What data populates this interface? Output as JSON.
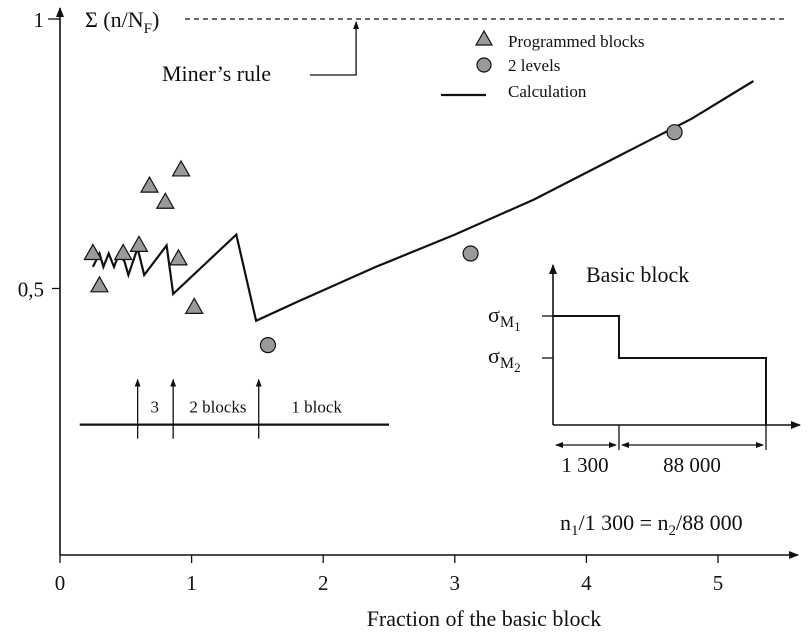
{
  "chart_data": {
    "type": "scatter",
    "xlabel": "Fraction of the basic block",
    "x_ticks": [
      "0",
      "1",
      "2",
      "3",
      "4",
      "5"
    ],
    "y_ticks": [
      "0,5",
      "1"
    ],
    "xlim": [
      0,
      5.3
    ],
    "ylim": [
      0,
      1
    ],
    "grid": false,
    "legend_position": "top-right",
    "legend": {
      "programmed": "Programmed blocks",
      "levels": "2 levels",
      "calc": "Calculation"
    },
    "reference": {
      "sum_label": "Σ (n/N",
      "sum_sub": "F",
      "sum_close": ")",
      "miner_label": "Miner’s rule",
      "miner_x": 2.25,
      "y": 1
    },
    "series": [
      {
        "name": "Programmed blocks",
        "marker": "triangle",
        "points": [
          {
            "x": 0.25,
            "y": 0.565
          },
          {
            "x": 0.3,
            "y": 0.505
          },
          {
            "x": 0.48,
            "y": 0.565
          },
          {
            "x": 0.6,
            "y": 0.58
          },
          {
            "x": 0.68,
            "y": 0.69
          },
          {
            "x": 0.8,
            "y": 0.66
          },
          {
            "x": 0.9,
            "y": 0.555
          },
          {
            "x": 0.92,
            "y": 0.72
          },
          {
            "x": 1.02,
            "y": 0.465
          }
        ]
      },
      {
        "name": "2 levels",
        "marker": "circle",
        "points": [
          {
            "x": 1.58,
            "y": 0.395
          },
          {
            "x": 3.12,
            "y": 0.565
          },
          {
            "x": 4.67,
            "y": 0.79
          }
        ]
      },
      {
        "name": "Calculation",
        "marker": "line",
        "points": [
          {
            "x": 0.25,
            "y": 0.54
          },
          {
            "x": 0.3,
            "y": 0.565
          },
          {
            "x": 0.33,
            "y": 0.54
          },
          {
            "x": 0.37,
            "y": 0.565
          },
          {
            "x": 0.41,
            "y": 0.54
          },
          {
            "x": 0.45,
            "y": 0.565
          },
          {
            "x": 0.49,
            "y": 0.55
          },
          {
            "x": 0.52,
            "y": 0.525
          },
          {
            "x": 0.59,
            "y": 0.575
          },
          {
            "x": 0.64,
            "y": 0.525
          },
          {
            "x": 0.81,
            "y": 0.58
          },
          {
            "x": 0.86,
            "y": 0.49
          },
          {
            "x": 1.34,
            "y": 0.6
          },
          {
            "x": 1.49,
            "y": 0.44
          },
          {
            "x": 1.8,
            "y": 0.475
          },
          {
            "x": 2.4,
            "y": 0.54
          },
          {
            "x": 3.0,
            "y": 0.6
          },
          {
            "x": 3.6,
            "y": 0.665
          },
          {
            "x": 4.2,
            "y": 0.74
          },
          {
            "x": 4.8,
            "y": 0.815
          },
          {
            "x": 5.27,
            "y": 0.885
          }
        ]
      }
    ],
    "block_annotation": {
      "x_start": 0.15,
      "x_end": 2.5,
      "y": 0.24,
      "arrows_x": [
        0.59,
        0.86,
        1.51
      ],
      "labels": [
        {
          "text": "3",
          "x": 0.72
        },
        {
          "text": "2 blocks",
          "x": 1.2
        },
        {
          "text": "1 block",
          "x": 1.95
        }
      ]
    },
    "inset": {
      "title": "Basic block",
      "sigma": "σ",
      "m1_sub": "M",
      "m1_idx": "1",
      "m2_sub": "M",
      "m2_idx": "2",
      "seg1_label": "1 300",
      "seg2_label": "88 000",
      "seg1_cycles": 1300,
      "seg2_cycles": 88000,
      "level1": 1.0,
      "level2": 0.5
    },
    "ratio": {
      "p1": "n",
      "s1": "1",
      "mid": "/1 300 = n",
      "s2": "2",
      "end": "/88 000"
    }
  }
}
